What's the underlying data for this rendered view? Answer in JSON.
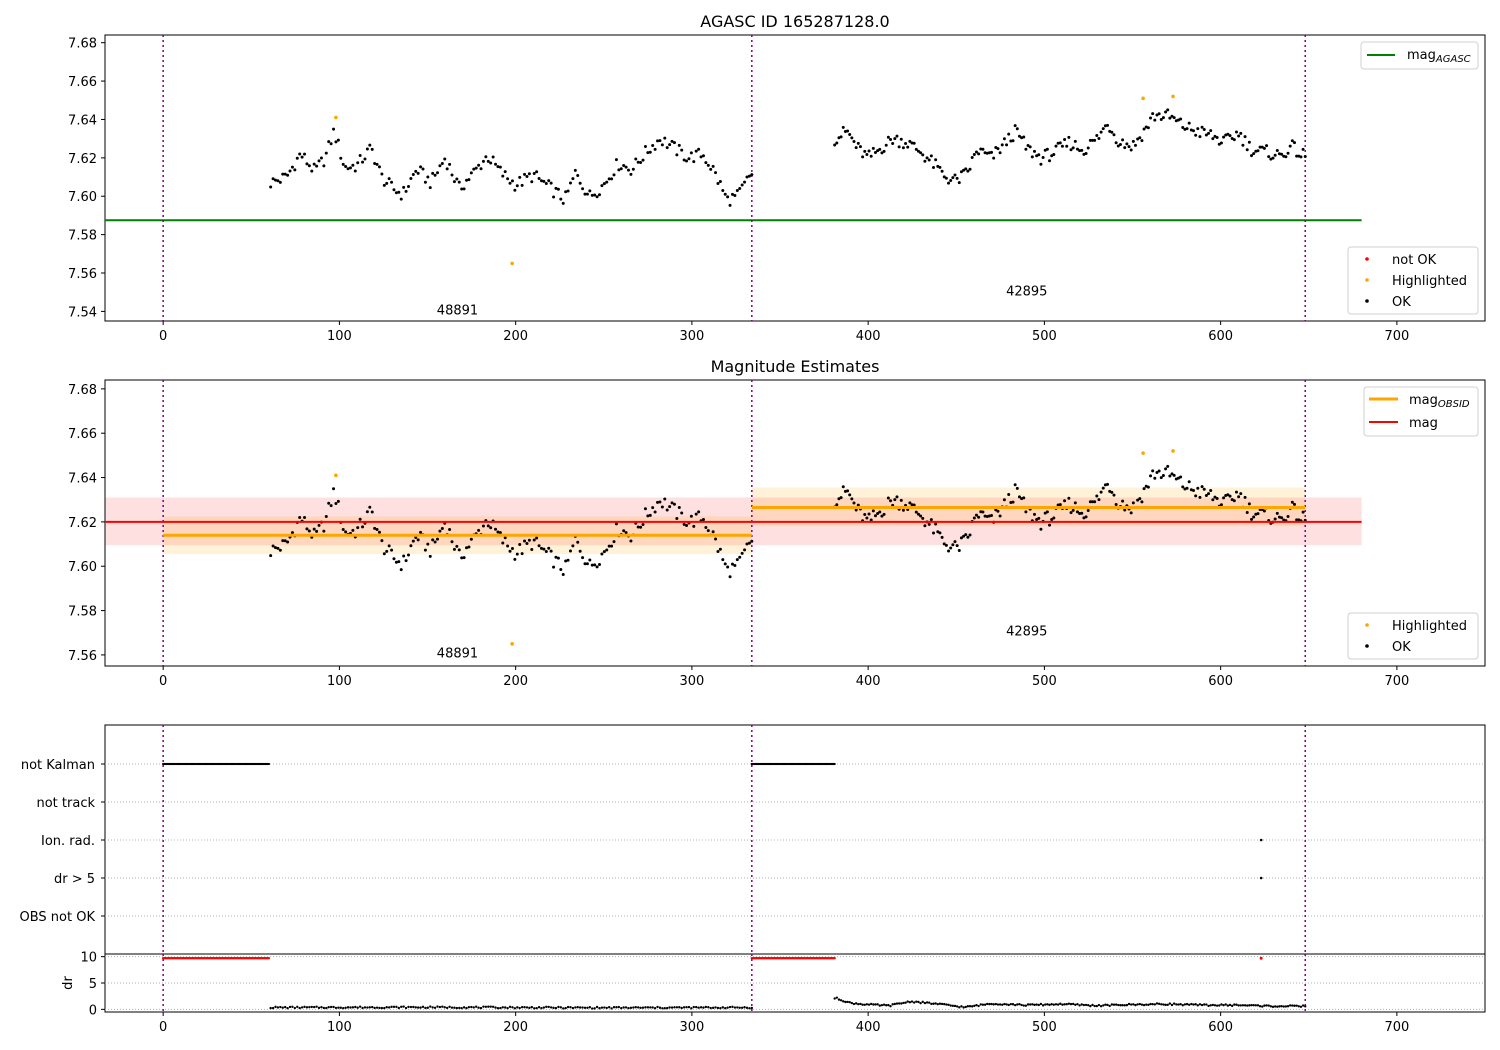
{
  "colors": {
    "ok": "#000000",
    "highlighted": "#ffa500",
    "not_ok": "#ff0000",
    "mag_agasc": "#008000",
    "mag_obsid": "#ffa500",
    "mag": "#ff0000",
    "obs_boundary": "#800080",
    "grid": "#b0b0b0"
  },
  "chart_data": [
    {
      "type": "scatter",
      "title": "AGASC ID 165287128.0",
      "xlabel": "",
      "ylabel": "",
      "xlim": [
        -33,
        750
      ],
      "ylim": [
        7.535,
        7.684
      ],
      "x_ticks": [
        0,
        100,
        200,
        300,
        400,
        500,
        600,
        700
      ],
      "y_ticks": [
        7.54,
        7.56,
        7.58,
        7.6,
        7.62,
        7.64,
        7.66,
        7.68
      ],
      "vertical_lines": [
        0,
        334,
        648
      ],
      "obsid_labels": [
        {
          "text": "48891",
          "x": 167,
          "y": 7.541
        },
        {
          "text": "42895",
          "x": 490,
          "y": 7.551
        }
      ],
      "series": [
        {
          "name": "mag_AGASC",
          "type": "hline",
          "y": 7.5875,
          "x_range": [
            -33,
            680
          ]
        },
        {
          "name": "not OK",
          "values": []
        },
        {
          "name": "Highlighted",
          "points": [
            [
              98,
              7.641
            ],
            [
              198,
              7.565
            ],
            [
              556,
              7.651
            ],
            [
              573,
              7.652
            ]
          ]
        },
        {
          "name": "OK",
          "segments": [
            {
              "x_start": 61,
              "x_end": 334,
              "n": 200,
              "knots": [
                [
                  61,
                  7.607
                ],
                [
                  70,
                  7.61
                ],
                [
                  78,
                  7.622
                ],
                [
                  86,
                  7.613
                ],
                [
                  92,
                  7.62
                ],
                [
                  97,
                  7.634
                ],
                [
                  103,
                  7.615
                ],
                [
                  110,
                  7.616
                ],
                [
                  118,
                  7.625
                ],
                [
                  124,
                  7.61
                ],
                [
                  130,
                  7.604
                ],
                [
                  136,
                  7.601
                ],
                [
                  144,
                  7.614
                ],
                [
                  152,
                  7.607
                ],
                [
                  160,
                  7.62
                ],
                [
                  168,
                  7.604
                ],
                [
                  176,
                  7.612
                ],
                [
                  184,
                  7.621
                ],
                [
                  192,
                  7.612
                ],
                [
                  200,
                  7.606
                ],
                [
                  210,
                  7.611
                ],
                [
                  220,
                  7.604
                ],
                [
                  228,
                  7.598
                ],
                [
                  234,
                  7.612
                ],
                [
                  242,
                  7.6
                ],
                [
                  250,
                  7.606
                ],
                [
                  258,
                  7.617
                ],
                [
                  266,
                  7.614
                ],
                [
                  274,
                  7.623
                ],
                [
                  282,
                  7.63
                ],
                [
                  290,
                  7.625
                ],
                [
                  298,
                  7.62
                ],
                [
                  306,
                  7.622
                ],
                [
                  312,
                  7.614
                ],
                [
                  320,
                  7.598
                ],
                [
                  326,
                  7.6
                ],
                [
                  334,
                  7.612
                ]
              ]
            },
            {
              "x_start": 381,
              "x_end": 648,
              "n": 220,
              "knots": [
                [
                  381,
                  7.63
                ],
                [
                  388,
                  7.634
                ],
                [
                  394,
                  7.625
                ],
                [
                  400,
                  7.62
                ],
                [
                  406,
                  7.624
                ],
                [
                  414,
                  7.63
                ],
                [
                  422,
                  7.628
                ],
                [
                  430,
                  7.623
                ],
                [
                  438,
                  7.616
                ],
                [
                  444,
                  7.61
                ],
                [
                  450,
                  7.608
                ],
                [
                  456,
                  7.612
                ],
                [
                  462,
                  7.624
                ],
                [
                  470,
                  7.62
                ],
                [
                  478,
                  7.628
                ],
                [
                  484,
                  7.634
                ],
                [
                  490,
                  7.625
                ],
                [
                  498,
                  7.62
                ],
                [
                  506,
                  7.623
                ],
                [
                  514,
                  7.628
                ],
                [
                  522,
                  7.624
                ],
                [
                  530,
                  7.63
                ],
                [
                  536,
                  7.638
                ],
                [
                  542,
                  7.629
                ],
                [
                  550,
                  7.626
                ],
                [
                  556,
                  7.633
                ],
                [
                  562,
                  7.642
                ],
                [
                  570,
                  7.642
                ],
                [
                  578,
                  7.637
                ],
                [
                  586,
                  7.634
                ],
                [
                  594,
                  7.632
                ],
                [
                  602,
                  7.628
                ],
                [
                  610,
                  7.633
                ],
                [
                  618,
                  7.624
                ],
                [
                  626,
                  7.623
                ],
                [
                  634,
                  7.621
                ],
                [
                  640,
                  7.626
                ],
                [
                  648,
                  7.62
                ]
              ]
            }
          ]
        }
      ],
      "legend_top_right": [
        {
          "label_main": "mag",
          "label_sub": "AGASC",
          "color": "#008000"
        }
      ],
      "legend_bottom_right": [
        {
          "label": "not OK",
          "color": "#ff0000"
        },
        {
          "label": "Highlighted",
          "color": "#ffa500"
        },
        {
          "label": "OK",
          "color": "#000000"
        }
      ]
    },
    {
      "type": "scatter",
      "title": "Magnitude Estimates",
      "xlabel": "",
      "ylabel": "",
      "xlim": [
        -33,
        750
      ],
      "ylim": [
        7.555,
        7.684
      ],
      "x_ticks": [
        0,
        100,
        200,
        300,
        400,
        500,
        600,
        700
      ],
      "y_ticks": [
        7.56,
        7.58,
        7.6,
        7.62,
        7.64,
        7.66,
        7.68
      ],
      "vertical_lines": [
        0,
        334,
        648
      ],
      "obsid_labels": [
        {
          "text": "48891",
          "x": 167,
          "y": 7.561
        },
        {
          "text": "42895",
          "x": 490,
          "y": 7.571
        }
      ],
      "mag": {
        "value": 7.62,
        "band": [
          7.6095,
          7.631
        ],
        "x_range": [
          -33,
          680
        ]
      },
      "mag_obsid": [
        {
          "x_range": [
            0,
            334
          ],
          "value": 7.614,
          "band": [
            7.6055,
            7.6225
          ]
        },
        {
          "x_range": [
            334,
            648
          ],
          "value": 7.6265,
          "band": [
            7.618,
            7.6355
          ]
        }
      ],
      "series": [
        {
          "name": "Highlighted",
          "points": [
            [
              98,
              7.641
            ],
            [
              198,
              7.565
            ],
            [
              556,
              7.651
            ],
            [
              573,
              7.652
            ]
          ]
        },
        {
          "name": "OK",
          "same_as_panel": 0
        }
      ],
      "legend_top_right": [
        {
          "label_main": "mag",
          "label_sub": "OBSID",
          "color": "#ffa500"
        },
        {
          "label_main": "mag",
          "label_sub": "",
          "color": "#ff0000"
        }
      ],
      "legend_bottom_right": [
        {
          "label": "Highlighted",
          "color": "#ffa500"
        },
        {
          "label": "OK",
          "color": "#000000"
        }
      ]
    },
    {
      "type": "scatter",
      "title": "",
      "xlabel": "",
      "ylabel": "",
      "xlim": [
        -33,
        750
      ],
      "categories": [
        "not Kalman",
        "not track",
        "Ion. rad.",
        "dr > 5",
        "OBS not OK"
      ],
      "vertical_lines": [
        0,
        334,
        648
      ],
      "flags": [
        {
          "category": "not Kalman",
          "ranges": [
            [
              0,
              60
            ],
            [
              334,
              381
            ]
          ],
          "points": []
        },
        {
          "category": "not track",
          "ranges": [],
          "points": []
        },
        {
          "category": "Ion. rad.",
          "ranges": [],
          "points": [
            623
          ]
        },
        {
          "category": "dr > 5",
          "ranges": [],
          "points": [
            623
          ]
        },
        {
          "category": "OBS not OK",
          "ranges": [],
          "points": []
        }
      ]
    },
    {
      "type": "scatter",
      "title": "",
      "xlabel": "",
      "ylabel": "dr",
      "xlim": [
        -33,
        750
      ],
      "ylim": [
        -0.5,
        10.5
      ],
      "x_ticks": [
        0,
        100,
        200,
        300,
        400,
        500,
        600,
        700
      ],
      "y_ticks": [
        0,
        5,
        10
      ],
      "vertical_lines": [
        0,
        334,
        648
      ],
      "not_ok_ranges": [
        [
          0,
          60
        ],
        [
          334,
          381
        ]
      ],
      "not_ok_points": [
        623
      ],
      "not_ok_value": 9.7,
      "ok_segments": [
        {
          "x_start": 61,
          "x_end": 334,
          "n": 200,
          "knots": [
            [
              61,
              0.35
            ],
            [
              150,
              0.4
            ],
            [
              250,
              0.3
            ],
            [
              334,
              0.35
            ]
          ]
        },
        {
          "x_start": 381,
          "x_end": 648,
          "n": 220,
          "knots": [
            [
              382,
              2.1
            ],
            [
              390,
              1.2
            ],
            [
              400,
              0.9
            ],
            [
              412,
              0.7
            ],
            [
              424,
              1.5
            ],
            [
              440,
              1.0
            ],
            [
              455,
              0.4
            ],
            [
              470,
              1.1
            ],
            [
              490,
              0.8
            ],
            [
              510,
              1.0
            ],
            [
              530,
              0.7
            ],
            [
              550,
              0.9
            ],
            [
              570,
              1.0
            ],
            [
              590,
              0.8
            ],
            [
              610,
              0.8
            ],
            [
              630,
              0.6
            ],
            [
              648,
              0.6
            ]
          ]
        }
      ]
    }
  ]
}
